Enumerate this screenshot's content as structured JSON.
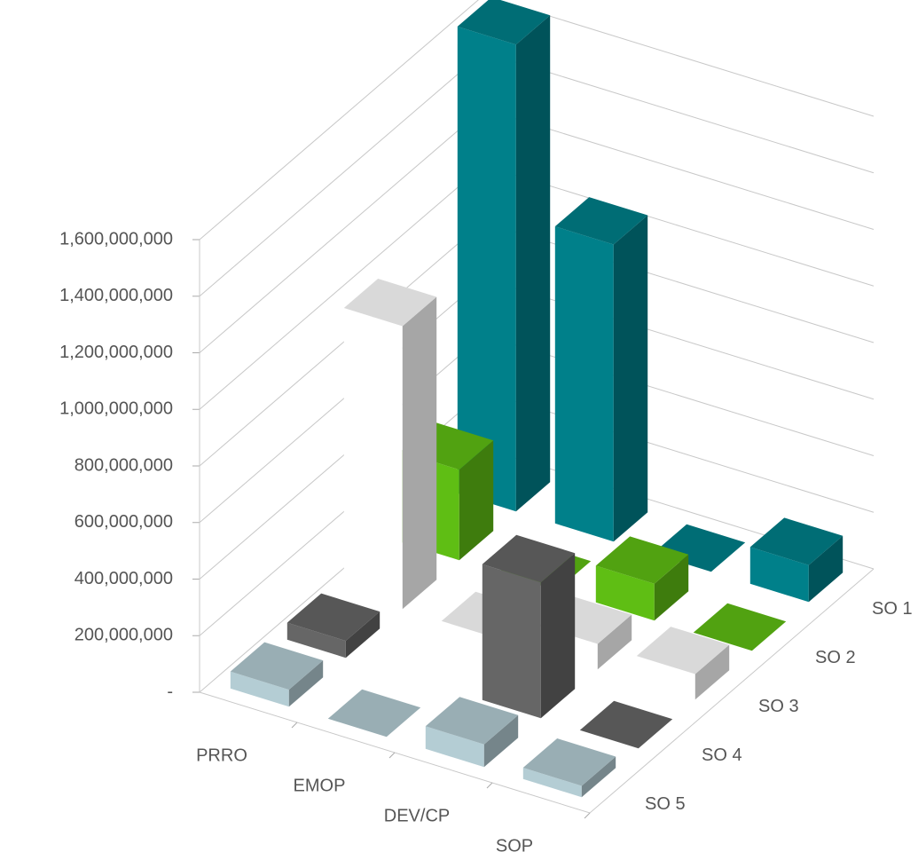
{
  "chart_data": {
    "type": "bar3d",
    "categories": [
      "PRRO",
      "EMOP",
      "DEV/CP",
      "SOP"
    ],
    "series": [
      {
        "name": "SO 1",
        "color": "#00808a",
        "values": [
          1650000000,
          1050000000,
          0,
          130000000
        ]
      },
      {
        "name": "SO 2",
        "color": "#5fbe14",
        "values": [
          320000000,
          0,
          130000000,
          0
        ]
      },
      {
        "name": "SO 3",
        "color": "#ffffff",
        "values": [
          1000000000,
          0,
          90000000,
          90000000
        ]
      },
      {
        "name": "SO 4",
        "color": "#666666",
        "values": [
          60000000,
          null,
          480000000,
          0
        ]
      },
      {
        "name": "SO 5",
        "color": "#b4cdd4",
        "values": [
          60000000,
          0,
          80000000,
          40000000
        ]
      }
    ],
    "ylim": [
      0,
      1600000000
    ],
    "yticks": [
      {
        "value": 0,
        "label": "-"
      },
      {
        "value": 200000000,
        "label": "200,000,000"
      },
      {
        "value": 400000000,
        "label": "400,000,000"
      },
      {
        "value": 600000000,
        "label": "600,000,000"
      },
      {
        "value": 800000000,
        "label": "800,000,000"
      },
      {
        "value": 1000000000,
        "label": "1,000,000,000"
      },
      {
        "value": 1200000000,
        "label": "1,200,000,000"
      },
      {
        "value": 1400000000,
        "label": "1,400,000,000"
      },
      {
        "value": 1600000000,
        "label": "1,600,000,000"
      }
    ],
    "grid": true
  }
}
